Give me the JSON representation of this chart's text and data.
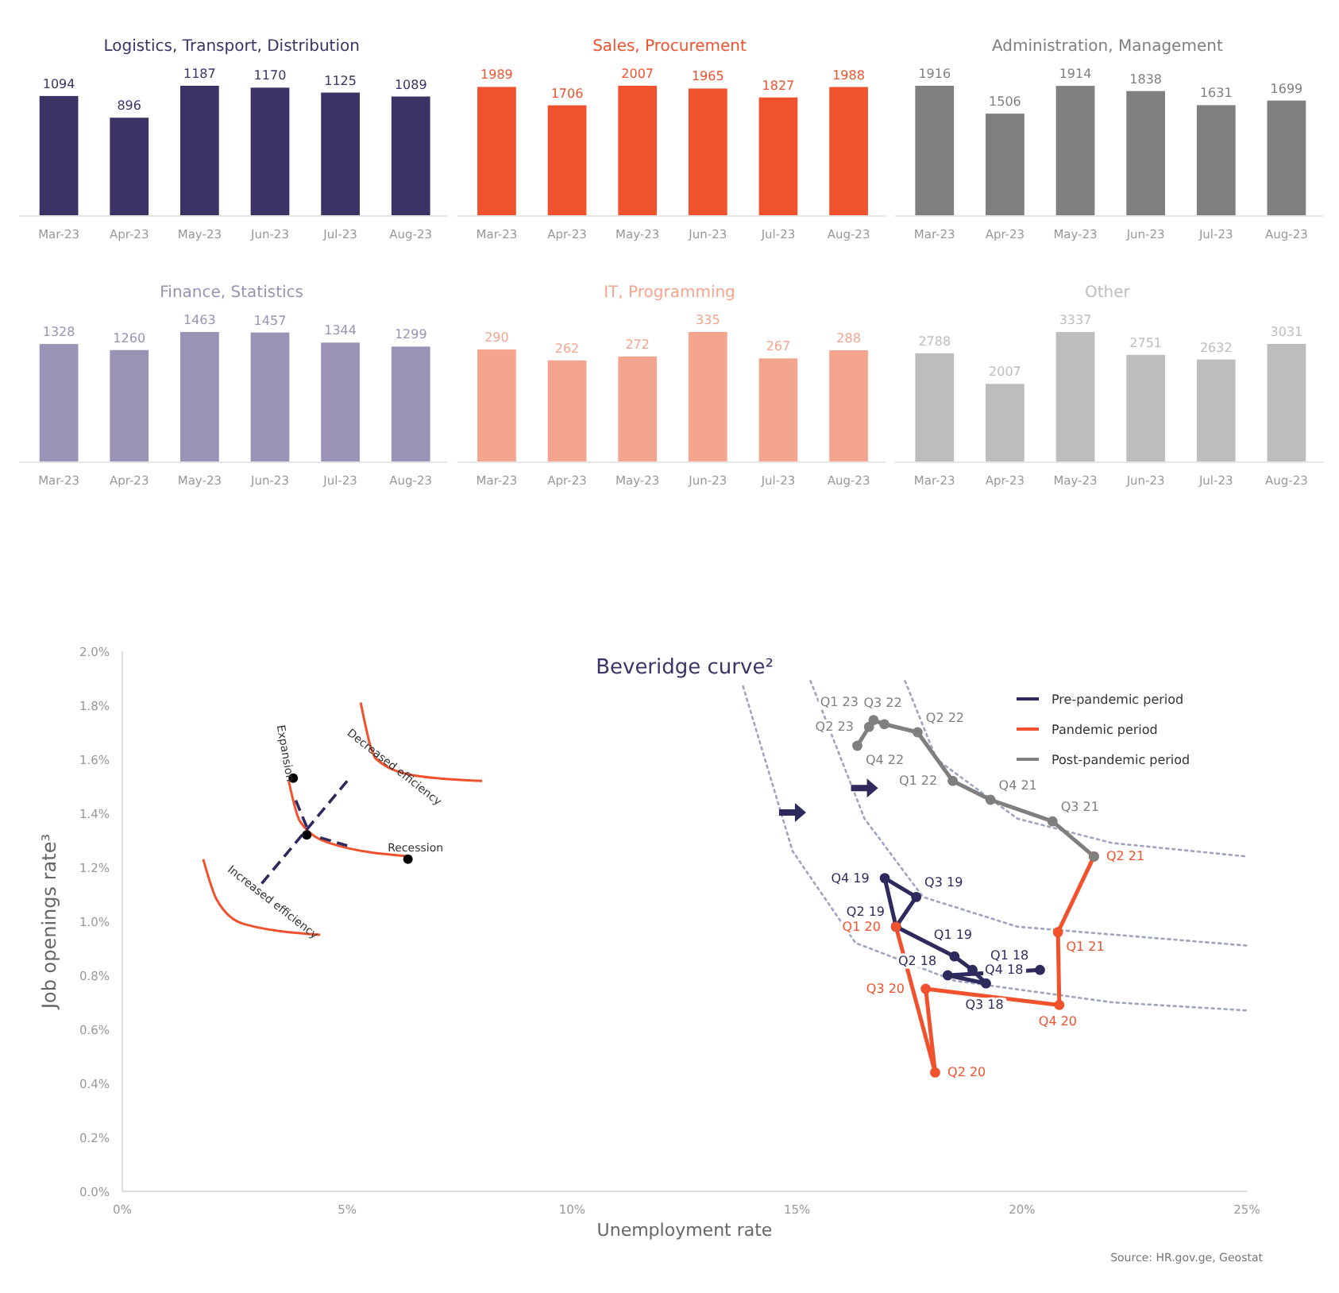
{
  "chart_data": [
    {
      "type": "bar",
      "title": "Logistics, Transport, Distribution",
      "categories": [
        "Mar-23",
        "Apr-23",
        "May-23",
        "Jun-23",
        "Jul-23",
        "Aug-23"
      ],
      "values": [
        1094,
        896,
        1187,
        1170,
        1125,
        1089
      ],
      "color": "#3d3266",
      "data_labels": true
    },
    {
      "type": "bar",
      "title": "Sales, Procurement",
      "categories": [
        "Mar-23",
        "Apr-23",
        "May-23",
        "Jun-23",
        "Jul-23",
        "Aug-23"
      ],
      "values": [
        1989,
        1706,
        2007,
        1965,
        1827,
        1988
      ],
      "color": "#f0522d",
      "data_labels": true
    },
    {
      "type": "bar",
      "title": "Administration, Management",
      "categories": [
        "Mar-23",
        "Apr-23",
        "May-23",
        "Jun-23",
        "Jul-23",
        "Aug-23"
      ],
      "values": [
        1916,
        1506,
        1914,
        1838,
        1631,
        1699
      ],
      "color": "#7f7f7f",
      "data_labels": true
    },
    {
      "type": "bar",
      "title": "Finance, Statistics",
      "categories": [
        "Mar-23",
        "Apr-23",
        "May-23",
        "Jun-23",
        "Jul-23",
        "Aug-23"
      ],
      "values": [
        1328,
        1260,
        1463,
        1457,
        1344,
        1299
      ],
      "color": "#9a93b5",
      "data_labels": true
    },
    {
      "type": "bar",
      "title": "IT, Programming",
      "categories": [
        "Mar-23",
        "Apr-23",
        "May-23",
        "Jun-23",
        "Jul-23",
        "Aug-23"
      ],
      "values": [
        290,
        262,
        272,
        335,
        267,
        288
      ],
      "color": "#f4a58f",
      "data_labels": true
    },
    {
      "type": "bar",
      "title": "Other",
      "categories": [
        "Mar-23",
        "Apr-23",
        "May-23",
        "Jun-23",
        "Jul-23",
        "Aug-23"
      ],
      "values": [
        2788,
        2007,
        3337,
        2751,
        2632,
        3031
      ],
      "color": "#bdbdbd",
      "data_labels": true
    },
    {
      "type": "line",
      "title": "Beveridge curve²",
      "xlabel": "Unemployment rate",
      "ylabel": "Job openings rate³",
      "marker": "circle",
      "legend": "top right",
      "grid": false,
      "xlim": [
        0,
        25
      ],
      "xticks": [
        {
          "value": 0,
          "label": "0%"
        },
        {
          "value": 5,
          "label": "5%"
        },
        {
          "value": 10,
          "label": "10%"
        },
        {
          "value": 15,
          "label": "15%"
        },
        {
          "value": 20,
          "label": "20%"
        },
        {
          "value": 25,
          "label": "25%"
        }
      ],
      "ylim": [
        0,
        2
      ],
      "yticks": [
        {
          "value": 0,
          "label": "0.0%"
        },
        {
          "value": 0.2,
          "label": "0.2%"
        },
        {
          "value": 0.4,
          "label": "0.4%"
        },
        {
          "value": 0.6,
          "label": "0.6%"
        },
        {
          "value": 0.8,
          "label": "0.8%"
        },
        {
          "value": 1,
          "label": "1.0%"
        },
        {
          "value": 1.2,
          "label": "1.2%"
        },
        {
          "value": 1.4,
          "label": "1.4%"
        },
        {
          "value": 1.6,
          "label": "1.6%"
        },
        {
          "value": 1.8,
          "label": "1.8%"
        },
        {
          "value": 2,
          "label": "2.0%"
        }
      ],
      "series": [
        {
          "type": "line",
          "marker": "none",
          "line_style": "dotted",
          "color": "#9da3c0",
          "x": [
            13.8,
            14.9,
            16.3,
            18.5,
            22,
            25
          ],
          "values": [
            1.87,
            1.26,
            0.92,
            0.78,
            0.7,
            0.67
          ]
        },
        {
          "type": "line",
          "marker": "none",
          "line_style": "dotted",
          "color": "#9da3c0",
          "x": [
            15.3,
            16.5,
            17.8,
            19.9,
            25
          ],
          "values": [
            1.89,
            1.38,
            1.09,
            0.98,
            0.91
          ]
        },
        {
          "type": "line",
          "marker": "none",
          "line_style": "dotted",
          "color": "#9da3c0",
          "x": [
            17.4,
            18.1,
            19.9,
            22,
            25
          ],
          "values": [
            1.89,
            1.6,
            1.38,
            1.29,
            1.24
          ]
        },
        {
          "name": "Pre-pandemic period",
          "color": "#2e2a5e",
          "x": [
            20.4,
            18.35,
            19.2,
            18.9,
            18.5,
            17.2,
            17.65,
            16.95,
            17.2
          ],
          "values": [
            0.82,
            0.8,
            0.77,
            0.82,
            0.87,
            0.98,
            1.09,
            1.16,
            0.98
          ],
          "value_labels": [
            "Q1 18",
            "Q2 18",
            "Q3 18",
            "Q4 18",
            "Q1 19",
            "Q2 19",
            "Q3 19",
            "Q4 19",
            null
          ]
        },
        {
          "name": "Pandemic period",
          "color": "#f0522d",
          "x": [
            17.2,
            18.07,
            17.86,
            20.83,
            20.8,
            21.6
          ],
          "values": [
            0.98,
            0.44,
            0.75,
            0.69,
            0.96,
            1.24
          ],
          "value_labels": [
            "Q1 20",
            "Q2 20",
            "Q3 20",
            "Q4 20",
            "Q1 21",
            "Q2 21"
          ]
        },
        {
          "name": "Post-pandemic period",
          "color": "#7f7f7f",
          "x": [
            21.6,
            20.68,
            19.3,
            18.46,
            17.68,
            16.94,
            16.7,
            16.6,
            16.34
          ],
          "values": [
            1.24,
            1.37,
            1.45,
            1.52,
            1.7,
            1.73,
            1.745,
            1.72,
            1.65
          ],
          "value_labels": [
            null,
            "Q3 21",
            "Q4 21",
            "Q1 22",
            "Q2 22",
            "Q3 22",
            "Q1 23",
            "Q2 23",
            "Q4 22"
          ]
        }
      ],
      "annotations": [
        "Expansion",
        "Decreased efficiency",
        "Recession",
        "Increased efficiency",
        "Source: HR.gov.ge, Geostat"
      ]
    }
  ]
}
